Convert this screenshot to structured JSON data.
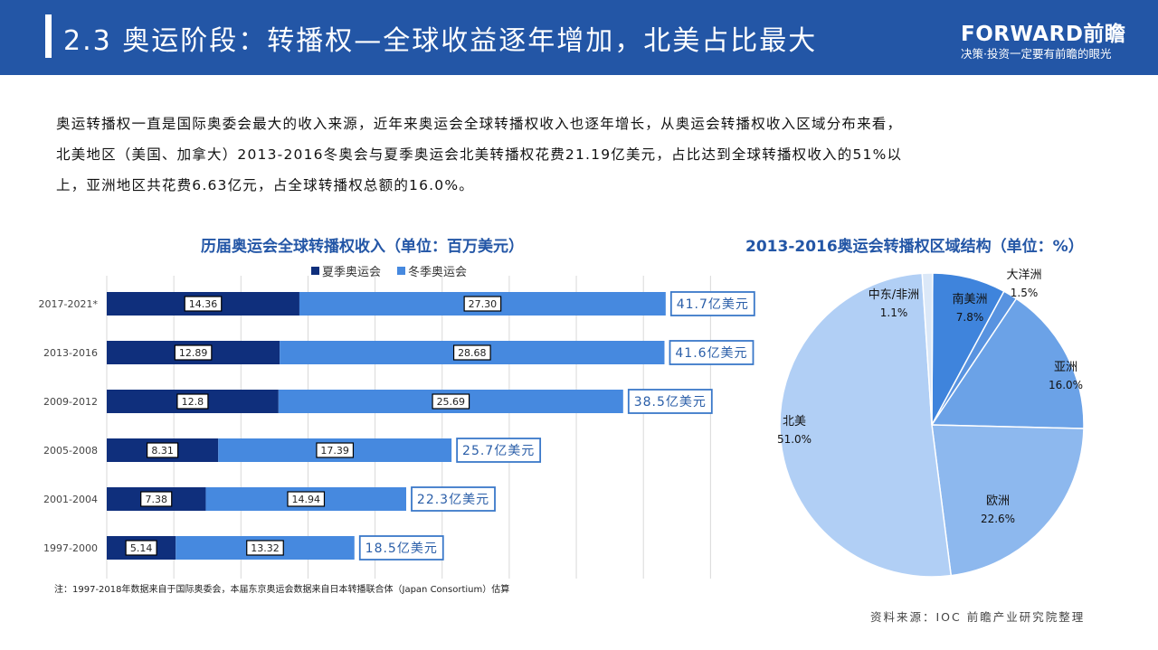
{
  "header": {
    "title": "2.3 奥运阶段：转播权—全球收益逐年增加，北美占比最大",
    "logo": "FORWARD前瞻",
    "slogan": "决策·投资一定要有前瞻的眼光",
    "color": "#2356a6"
  },
  "intro": {
    "lines": [
      "奥运转播权一直是国际奥委会最大的收入来源，近年来奥运会全球转播权收入也逐年增长，从奥运会转播权收入区域分布来看，",
      "北美地区（美国、加拿大）2013-2016冬奥会与夏季奥运会北美转播权花费21.19亿美元，占比达到全球转播权收入的51%以",
      "上，亚洲地区共花费6.63亿元，占全球转播权总额的16.0%。"
    ]
  },
  "chart_data": [
    {
      "type": "bar",
      "orientation": "horizontal",
      "stacked": true,
      "title": "历届奥运会全球转播权收入（单位：百万美元）",
      "categories": [
        "2017-2021*",
        "2013-2016",
        "2009-2012",
        "2005-2008",
        "2001-2004",
        "1997-2000"
      ],
      "series": [
        {
          "name": "夏季奥运会",
          "color": "#0f2f7c",
          "values": [
            14.36,
            12.89,
            12.8,
            8.31,
            7.38,
            5.14
          ],
          "labels": [
            "14.36",
            "12.89",
            "12.8",
            "8.31",
            "7.38",
            "5.14"
          ]
        },
        {
          "name": "冬季奥运会",
          "color": "#4689df",
          "values": [
            27.3,
            28.68,
            25.69,
            17.39,
            14.94,
            13.32
          ],
          "labels": [
            "27.30",
            "28.68",
            "25.69",
            "17.39",
            "14.94",
            "13.32"
          ]
        }
      ],
      "totals": [
        "41.7亿美元",
        "41.6亿美元",
        "38.5亿美元",
        "25.7亿美元",
        "22.3亿美元",
        "18.5亿美元"
      ],
      "xlim": [
        0,
        45
      ],
      "grid_step": 5,
      "grid": true,
      "legend": "top"
    },
    {
      "type": "pie",
      "title": "2013-2016奥运会转播权区域结构（单位：%）",
      "slices": [
        {
          "label": "南美洲",
          "value": 7.8,
          "text": "7.8%",
          "color": "#3f84dc"
        },
        {
          "label": "大洋洲",
          "value": 1.5,
          "text": "1.5%",
          "color": "#5893e0"
        },
        {
          "label": "亚洲",
          "value": 16.0,
          "text": "16.0%",
          "color": "#6ba2e7"
        },
        {
          "label": "欧洲",
          "value": 22.6,
          "text": "22.6%",
          "color": "#8db8ee"
        },
        {
          "label": "北美",
          "value": 51.0,
          "text": "51.0%",
          "color": "#b1cff5"
        },
        {
          "label": "中东/非洲",
          "value": 1.1,
          "text": "1.1%",
          "color": "#dbe8f8"
        }
      ]
    }
  ],
  "note": "注：1997-2018年数据来自于国际奥委会，本届东京奥运会数据来自日本转播联合体（Japan Consortium）估算",
  "source": "资料来源：IOC 前瞻产业研究院整理"
}
